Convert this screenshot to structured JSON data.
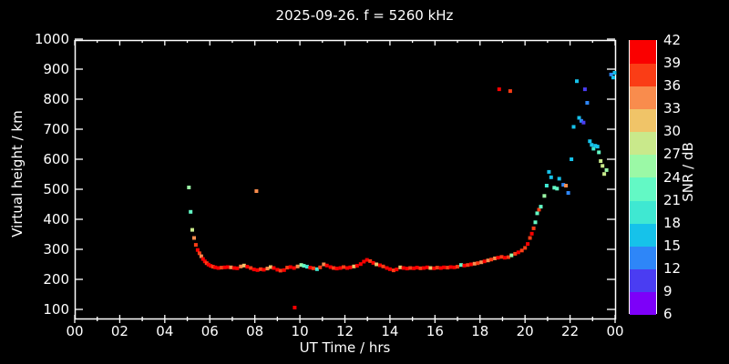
{
  "title": "2025-09-26. f = 5260 kHz",
  "axes": {
    "x": {
      "label": "UT Time / hrs",
      "tick_values": [
        0,
        2,
        4,
        6,
        8,
        10,
        12,
        14,
        16,
        18,
        20,
        22,
        24
      ],
      "tick_labels": [
        "00",
        "02",
        "04",
        "06",
        "08",
        "10",
        "12",
        "14",
        "16",
        "18",
        "20",
        "22",
        "00"
      ],
      "range": [
        0,
        24
      ]
    },
    "y": {
      "label": "Virtual height / km",
      "tick_values": [
        100,
        200,
        300,
        400,
        500,
        600,
        700,
        800,
        900,
        1000
      ],
      "tick_labels": [
        "100",
        "200",
        "300",
        "400",
        "500",
        "600",
        "700",
        "800",
        "900",
        "1000"
      ],
      "range": [
        100,
        1000
      ]
    }
  },
  "colorbar": {
    "label": "SNR / dB",
    "tick_labels": [
      "42",
      "39",
      "36",
      "33",
      "30",
      "27",
      "24",
      "21",
      "18",
      "15",
      "12",
      "9",
      "6"
    ],
    "segments": [
      {
        "min": 6,
        "max": 9,
        "color": "#7d00f9"
      },
      {
        "min": 9,
        "max": 12,
        "color": "#4a3df2"
      },
      {
        "min": 12,
        "max": 15,
        "color": "#2e86f8"
      },
      {
        "min": 15,
        "max": 18,
        "color": "#16c2ea"
      },
      {
        "min": 18,
        "max": 21,
        "color": "#3fe8d2"
      },
      {
        "min": 21,
        "max": 24,
        "color": "#63f9c5"
      },
      {
        "min": 24,
        "max": 27,
        "color": "#9bf9a6"
      },
      {
        "min": 27,
        "max": 30,
        "color": "#c9e98b"
      },
      {
        "min": 30,
        "max": 33,
        "color": "#f0c468"
      },
      {
        "min": 33,
        "max": 36,
        "color": "#f98c4d"
      },
      {
        "min": 36,
        "max": 39,
        "color": "#fa3d16"
      },
      {
        "min": 39,
        "max": 42,
        "color": "#fa0000"
      }
    ]
  },
  "chart_data": {
    "type": "scatter",
    "title": "2025-09-26. f = 5260 kHz",
    "xlabel": "UT Time / hrs",
    "ylabel": "Virtual height / km",
    "color_label": "SNR / dB",
    "xlim": [
      0,
      24
    ],
    "ylim": [
      100,
      1000
    ],
    "color_range": [
      6,
      42
    ],
    "grid": false,
    "points_format": [
      "ut_hours",
      "virtual_height_km",
      "snr_db"
    ],
    "points": [
      [
        5.07,
        506,
        25
      ],
      [
        5.15,
        425,
        22
      ],
      [
        5.22,
        365,
        28
      ],
      [
        5.3,
        338,
        34
      ],
      [
        5.38,
        315,
        37
      ],
      [
        5.46,
        298,
        40
      ],
      [
        5.54,
        287,
        37
      ],
      [
        5.62,
        277,
        34
      ],
      [
        5.7,
        268,
        40
      ],
      [
        5.78,
        260,
        40
      ],
      [
        5.86,
        254,
        37
      ],
      [
        5.94,
        249,
        40
      ],
      [
        6.04,
        245,
        40
      ],
      [
        6.14,
        242,
        37
      ],
      [
        6.24,
        240,
        40
      ],
      [
        6.38,
        238,
        40
      ],
      [
        6.52,
        239,
        37
      ],
      [
        6.66,
        240,
        40
      ],
      [
        6.8,
        241,
        40
      ],
      [
        6.94,
        240,
        34
      ],
      [
        7.08,
        238,
        40
      ],
      [
        7.22,
        237,
        40
      ],
      [
        7.38,
        243,
        34
      ],
      [
        7.52,
        246,
        31
      ],
      [
        7.66,
        242,
        40
      ],
      [
        7.82,
        238,
        37
      ],
      [
        7.96,
        233,
        40
      ],
      [
        8.12,
        231,
        40
      ],
      [
        8.26,
        234,
        37
      ],
      [
        8.4,
        232,
        40
      ],
      [
        8.56,
        236,
        34
      ],
      [
        8.7,
        241,
        31
      ],
      [
        8.84,
        238,
        40
      ],
      [
        9.0,
        232,
        40
      ],
      [
        9.14,
        229,
        37
      ],
      [
        9.3,
        231,
        40
      ],
      [
        9.44,
        239,
        37
      ],
      [
        9.58,
        241,
        40
      ],
      [
        9.74,
        238,
        40
      ],
      [
        9.9,
        243,
        34
      ],
      [
        10.06,
        248,
        25
      ],
      [
        10.18,
        245,
        22
      ],
      [
        10.32,
        242,
        19
      ],
      [
        10.46,
        239,
        40
      ],
      [
        10.6,
        237,
        37
      ],
      [
        10.76,
        234,
        19
      ],
      [
        10.9,
        240,
        37
      ],
      [
        11.06,
        250,
        34
      ],
      [
        11.2,
        246,
        40
      ],
      [
        11.36,
        241,
        40
      ],
      [
        11.5,
        238,
        37
      ],
      [
        11.64,
        236,
        40
      ],
      [
        11.8,
        238,
        40
      ],
      [
        11.94,
        241,
        37
      ],
      [
        12.1,
        238,
        40
      ],
      [
        12.24,
        240,
        40
      ],
      [
        12.4,
        243,
        31
      ],
      [
        12.54,
        245,
        40
      ],
      [
        12.7,
        251,
        40
      ],
      [
        12.84,
        259,
        40
      ],
      [
        12.98,
        265,
        40
      ],
      [
        13.12,
        261,
        37
      ],
      [
        13.26,
        255,
        40
      ],
      [
        13.4,
        250,
        31
      ],
      [
        13.56,
        247,
        40
      ],
      [
        13.7,
        243,
        37
      ],
      [
        13.86,
        238,
        40
      ],
      [
        14.0,
        234,
        40
      ],
      [
        14.16,
        230,
        37
      ],
      [
        14.3,
        233,
        40
      ],
      [
        14.46,
        240,
        31
      ],
      [
        14.6,
        238,
        40
      ],
      [
        14.76,
        236,
        40
      ],
      [
        14.9,
        238,
        37
      ],
      [
        15.06,
        237,
        40
      ],
      [
        15.2,
        239,
        40
      ],
      [
        15.36,
        237,
        37
      ],
      [
        15.5,
        238,
        40
      ],
      [
        15.66,
        240,
        40
      ],
      [
        15.8,
        238,
        31
      ],
      [
        15.96,
        237,
        40
      ],
      [
        16.1,
        239,
        37
      ],
      [
        16.26,
        238,
        40
      ],
      [
        16.4,
        240,
        40
      ],
      [
        16.56,
        239,
        37
      ],
      [
        16.7,
        241,
        40
      ],
      [
        16.86,
        240,
        40
      ],
      [
        17.0,
        242,
        37
      ],
      [
        17.16,
        248,
        22
      ],
      [
        17.3,
        246,
        40
      ],
      [
        17.46,
        248,
        37
      ],
      [
        17.6,
        250,
        40
      ],
      [
        17.76,
        252,
        34
      ],
      [
        17.9,
        254,
        37
      ],
      [
        18.06,
        257,
        34
      ],
      [
        18.2,
        260,
        40
      ],
      [
        18.36,
        263,
        34
      ],
      [
        18.5,
        266,
        37
      ],
      [
        18.66,
        270,
        34
      ],
      [
        18.8,
        272,
        40
      ],
      [
        18.96,
        275,
        37
      ],
      [
        19.1,
        272,
        40
      ],
      [
        19.26,
        274,
        37
      ],
      [
        19.4,
        280,
        25
      ],
      [
        19.56,
        285,
        37
      ],
      [
        19.7,
        290,
        40
      ],
      [
        19.86,
        296,
        37
      ],
      [
        20.0,
        305,
        37
      ],
      [
        20.12,
        318,
        40
      ],
      [
        20.22,
        338,
        37
      ],
      [
        20.3,
        352,
        40
      ],
      [
        20.38,
        370,
        37
      ],
      [
        20.46,
        390,
        22
      ],
      [
        20.54,
        420,
        22
      ],
      [
        20.62,
        432,
        37
      ],
      [
        20.7,
        442,
        22
      ],
      [
        20.86,
        478,
        25
      ],
      [
        20.96,
        512,
        19
      ],
      [
        21.06,
        558,
        16
      ],
      [
        21.16,
        540,
        16
      ],
      [
        21.3,
        505,
        22
      ],
      [
        21.42,
        502,
        22
      ],
      [
        21.52,
        535,
        16
      ],
      [
        21.7,
        515,
        13
      ],
      [
        21.82,
        512,
        34
      ],
      [
        21.92,
        488,
        13
      ],
      [
        22.06,
        600,
        16
      ],
      [
        22.16,
        708,
        16
      ],
      [
        22.3,
        860,
        16
      ],
      [
        22.4,
        738,
        16
      ],
      [
        22.5,
        728,
        13
      ],
      [
        22.6,
        722,
        10
      ],
      [
        22.66,
        833,
        10
      ],
      [
        22.76,
        788,
        13
      ],
      [
        22.88,
        660,
        16
      ],
      [
        22.96,
        648,
        16
      ],
      [
        23.04,
        635,
        19
      ],
      [
        23.12,
        645,
        16
      ],
      [
        23.22,
        642,
        16
      ],
      [
        23.28,
        623,
        22
      ],
      [
        23.36,
        594,
        28
      ],
      [
        23.44,
        578,
        28
      ],
      [
        23.52,
        551,
        28
      ],
      [
        23.62,
        564,
        25
      ],
      [
        23.82,
        882,
        13
      ],
      [
        23.92,
        872,
        16
      ],
      [
        23.98,
        888,
        16
      ],
      [
        8.07,
        494,
        34
      ],
      [
        9.77,
        106,
        40
      ],
      [
        18.85,
        833,
        40
      ],
      [
        19.34,
        827,
        37
      ]
    ]
  }
}
